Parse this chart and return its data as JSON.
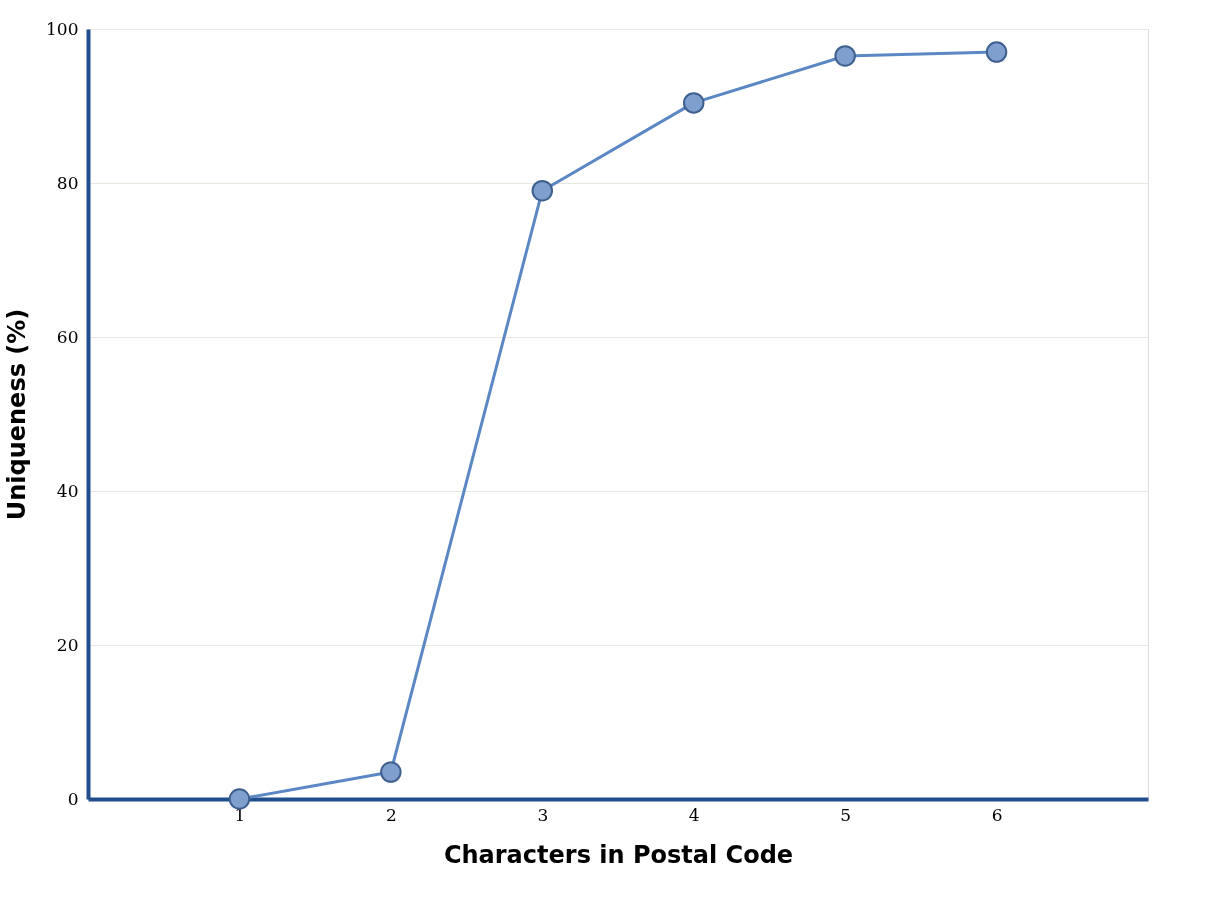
{
  "chart_data": {
    "type": "line",
    "xlabel": "Characters in Postal Code",
    "ylabel": "Uniqueness (%)",
    "x": [
      1,
      2,
      3,
      4,
      5,
      6
    ],
    "series": [
      {
        "color": "#5b87c5",
        "values": [
          0,
          3.5,
          79,
          90.4,
          96.5,
          97
        ]
      }
    ],
    "xlim": [
      0,
      7
    ],
    "xticks": [
      1,
      2,
      3,
      4,
      5,
      6
    ],
    "ylim": [
      0,
      100
    ],
    "yticks": [
      0,
      20,
      40,
      60,
      80,
      100
    ],
    "grid": "y",
    "marker": "circle",
    "line_style": "solid"
  }
}
